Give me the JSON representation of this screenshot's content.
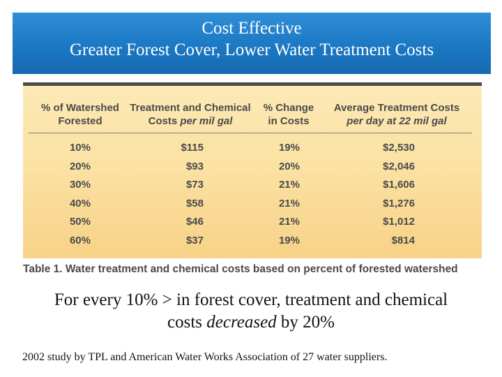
{
  "title": {
    "line1": "Cost Effective",
    "line2": "Greater Forest Cover, Lower Water Treatment Costs"
  },
  "table": {
    "headers": [
      {
        "line1": "% of Watershed",
        "line2": "Forested",
        "line2_plain": "",
        "line2_italic": ""
      },
      {
        "line1": "Treatment and Chemical",
        "line2": "",
        "line2_plain": "Costs ",
        "line2_italic": "per mil gal"
      },
      {
        "line1": "% Change",
        "line2": "in Costs",
        "line2_plain": "",
        "line2_italic": ""
      },
      {
        "line1": "Average Treatment Costs",
        "line2": "",
        "line2_plain": "",
        "line2_italic": "per day at 22 mil gal"
      }
    ],
    "rows": [
      [
        "10%",
        "$115",
        "19%",
        "$2,530"
      ],
      [
        "20%",
        "$93",
        "20%",
        "$2,046"
      ],
      [
        "30%",
        "$73",
        "21%",
        "$1,606"
      ],
      [
        "40%",
        "$58",
        "21%",
        "$1,276"
      ],
      [
        "50%",
        "$46",
        "21%",
        "$1,012"
      ],
      [
        "60%",
        "$37",
        "19%",
        "$814"
      ]
    ],
    "caption": "Table 1. Water treatment and chemical costs based on percent of forested watershed"
  },
  "statement": {
    "line1": "For every 10% > in forest cover, treatment and chemical",
    "line2_prefix": "costs ",
    "line2_italic": "decreased",
    "line2_suffix": " by 20%"
  },
  "footnote": "2002 study by TPL and American Water Works Association of 27 water suppliers.",
  "colors": {
    "banner": "#1b78c4",
    "table_background": "#fbe2a4",
    "table_text": "#4a4a4a"
  }
}
